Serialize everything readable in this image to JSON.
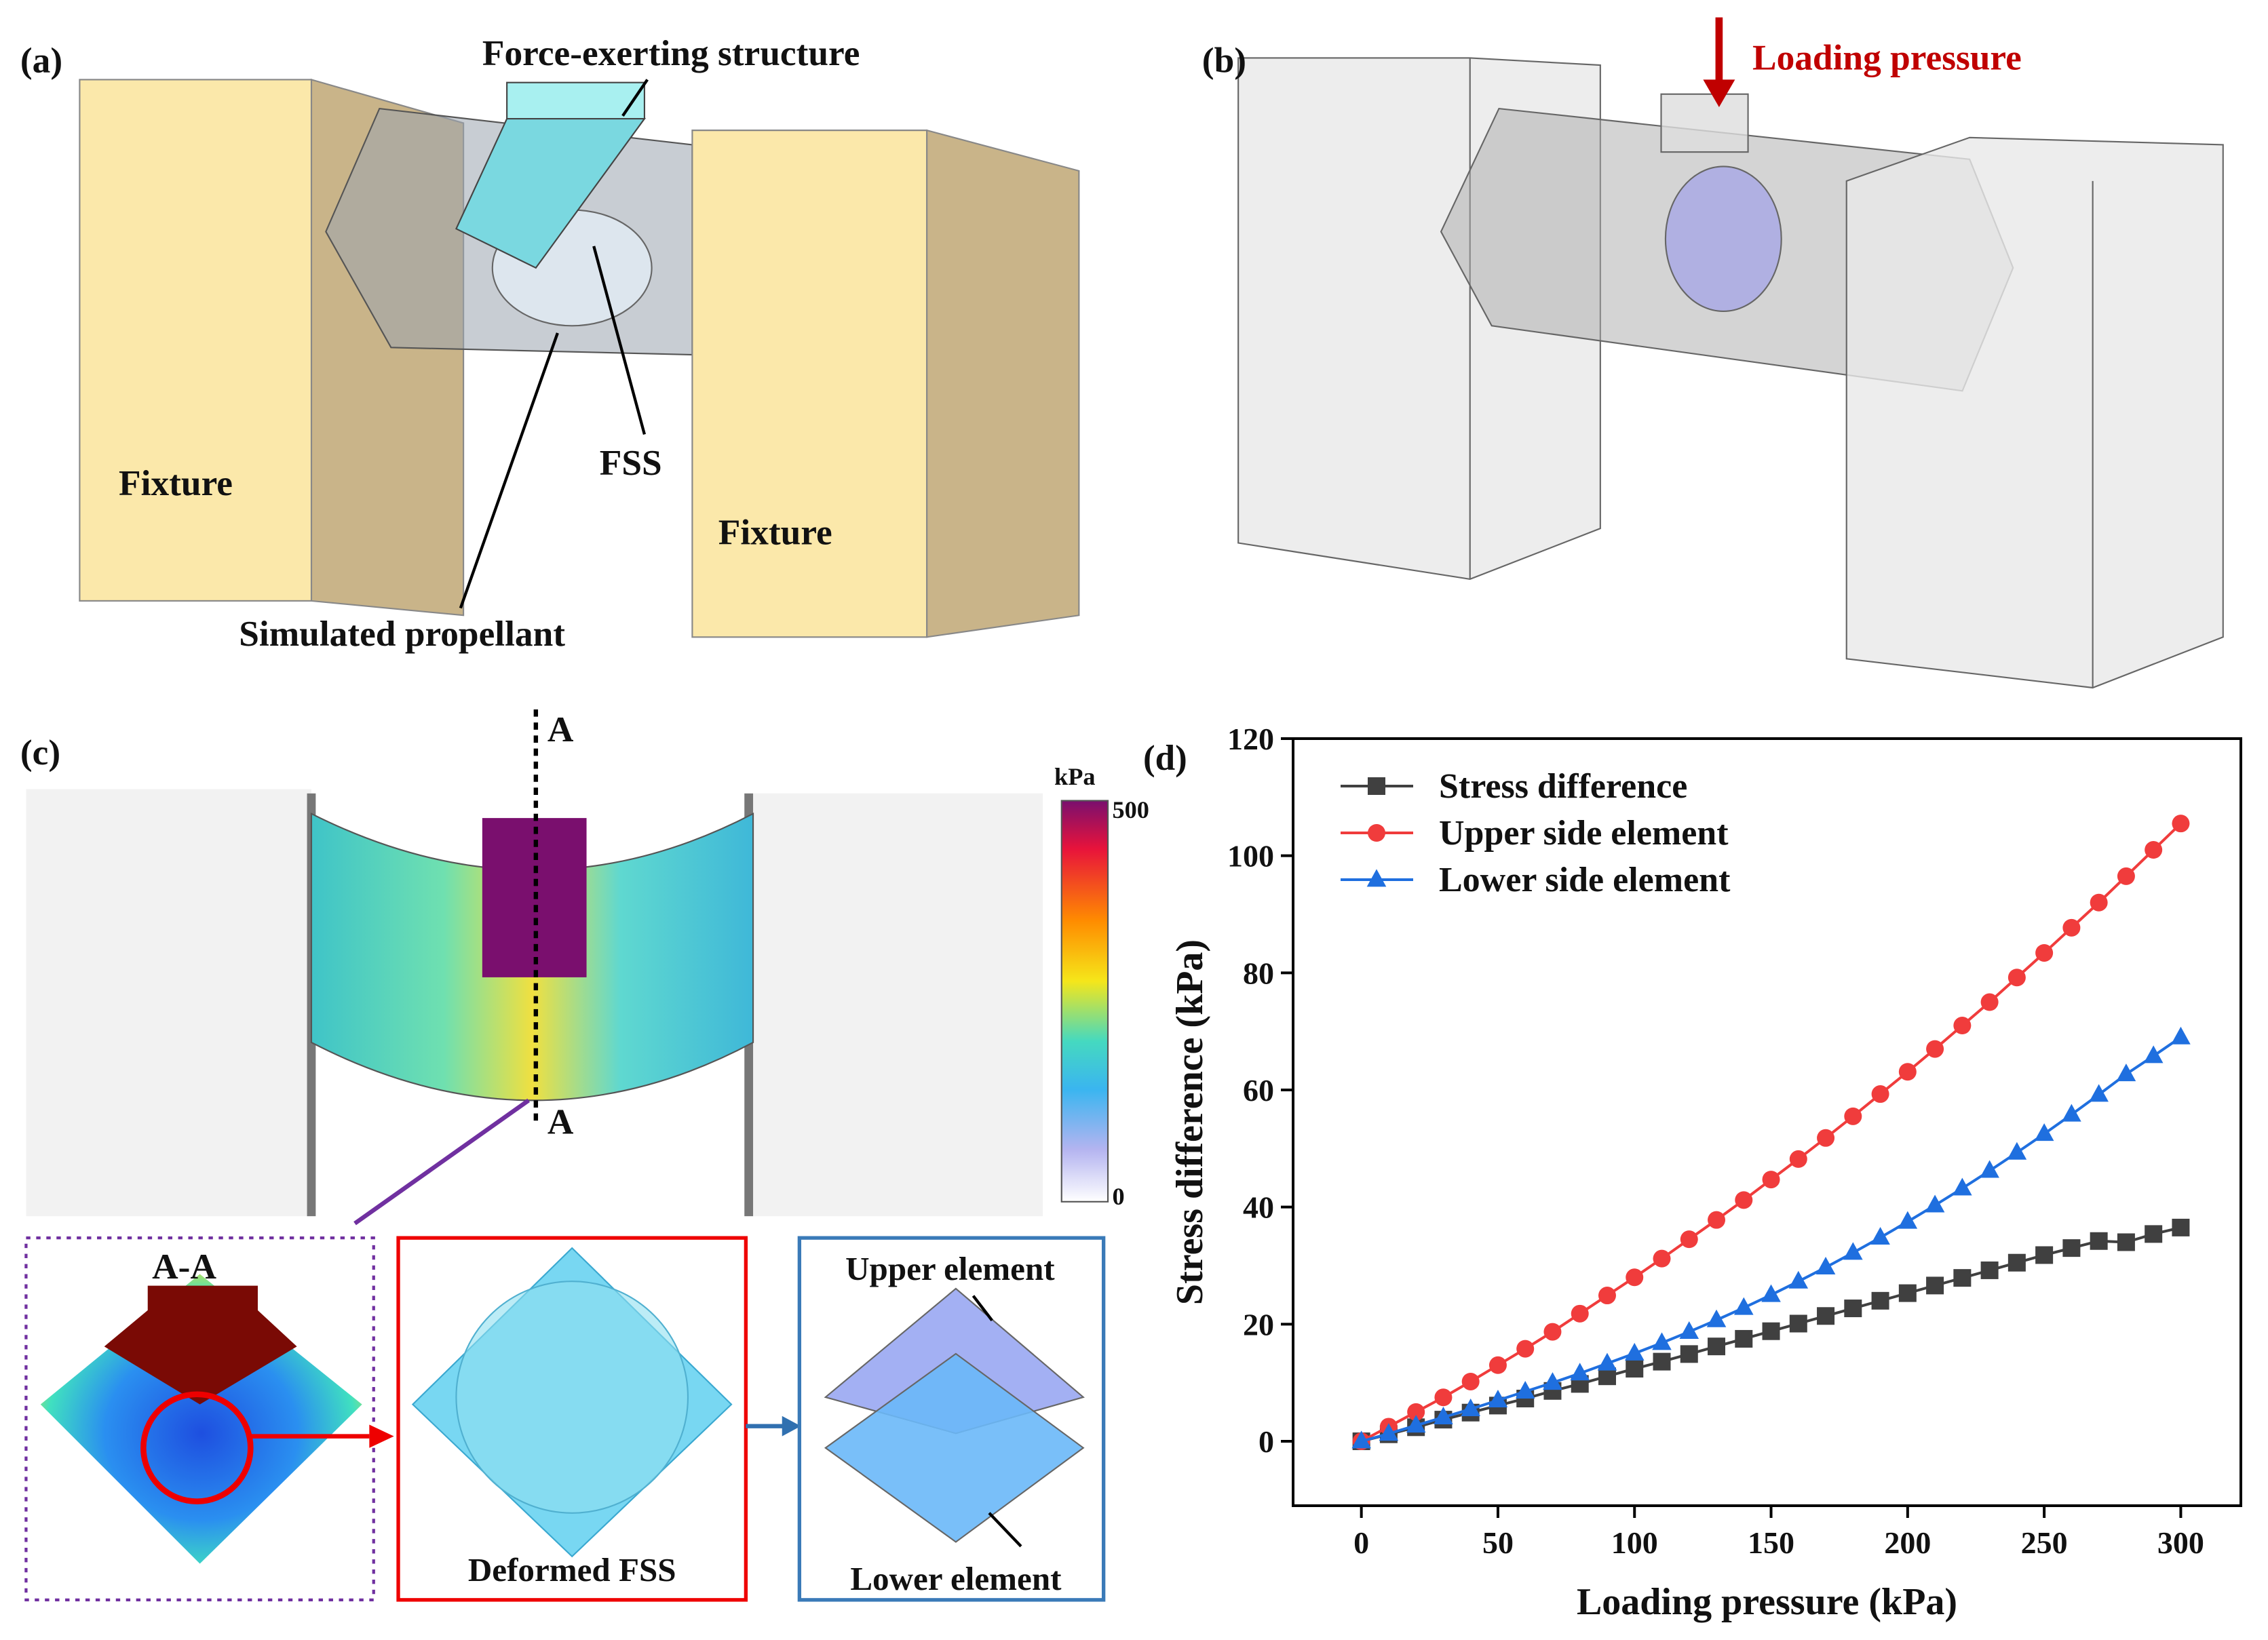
{
  "figure": {
    "a": {
      "label": "(a)",
      "force_structure": "Force-exerting structure",
      "fixture_left": "Fixture",
      "fss": "FSS",
      "fixture_right": "Fixture",
      "propellant": "Simulated propellant"
    },
    "b": {
      "label": "(b)",
      "loading": "Loading pressure"
    },
    "c": {
      "label": "(c)",
      "section_top": "A",
      "section_bottom": "A",
      "colorbar_unit": "kPa",
      "colorbar_max": 500,
      "colorbar_min": 0,
      "section": "A-A",
      "deformed": "Deformed FSS",
      "upper": "Upper element",
      "lower": "Lower element"
    }
  },
  "chart_data": {
    "type": "line",
    "panel_label": "(d)",
    "x_label": "Loading pressure (kPa)",
    "y_label": "Stress difference (kPa)",
    "x": [
      0,
      10,
      20,
      30,
      40,
      50,
      60,
      70,
      80,
      90,
      100,
      110,
      120,
      130,
      140,
      150,
      160,
      170,
      180,
      190,
      200,
      210,
      220,
      230,
      240,
      250,
      260,
      270,
      280,
      290,
      300
    ],
    "series": [
      {
        "name": "Stress difference",
        "color": "#404040",
        "marker": "square",
        "values": [
          0,
          1.2,
          2.4,
          3.7,
          4.9,
          6.1,
          7.3,
          8.6,
          9.8,
          11.1,
          12.4,
          13.6,
          14.9,
          16.2,
          17.5,
          18.8,
          20.1,
          21.4,
          22.7,
          24.0,
          25.3,
          26.6,
          27.9,
          29.2,
          30.5,
          31.8,
          33.0,
          34.2,
          34.0,
          35.4,
          36.5
        ]
      },
      {
        "name": "Upper side element",
        "color": "#f03c3c",
        "marker": "circle",
        "values": [
          0,
          2.5,
          5,
          7.5,
          10.2,
          13,
          15.8,
          18.7,
          21.8,
          24.9,
          28,
          31.2,
          34.5,
          37.8,
          41.2,
          44.7,
          48.2,
          51.8,
          55.5,
          59.3,
          63.1,
          67,
          71,
          75,
          79.2,
          83.4,
          87.7,
          92,
          96.5,
          101,
          105.5
        ]
      },
      {
        "name": "Lower side element",
        "color": "#1f6fdf",
        "marker": "triangle",
        "values": [
          0,
          1.3,
          2.7,
          4.1,
          5.5,
          7,
          8.5,
          10,
          11.6,
          13.3,
          15,
          16.8,
          18.7,
          20.7,
          22.8,
          25,
          27.3,
          29.7,
          32.2,
          34.8,
          37.5,
          40.3,
          43.2,
          46.2,
          49.3,
          52.5,
          55.8,
          59.2,
          62.7,
          65.8,
          69
        ]
      }
    ],
    "xlim": [
      -25,
      322
    ],
    "ylim": [
      -11,
      120
    ],
    "xticks": [
      0,
      50,
      100,
      150,
      200,
      250,
      300
    ],
    "yticks": [
      0,
      20,
      40,
      60,
      80,
      100,
      120
    ],
    "legend": "upper left"
  }
}
